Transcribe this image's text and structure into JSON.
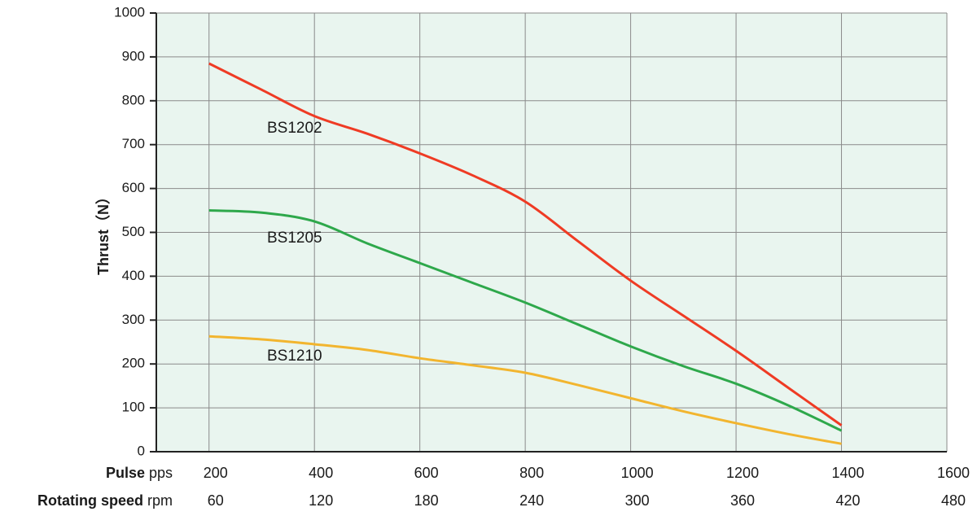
{
  "chart_data": {
    "type": "line",
    "ylabel": "Thrust",
    "ylabel_unit": "（N）",
    "ylim": [
      0,
      1000
    ],
    "yticks": [
      0,
      100,
      200,
      300,
      400,
      500,
      600,
      700,
      800,
      900,
      1000
    ],
    "xlim": [
      100,
      1600
    ],
    "x_rows": [
      {
        "label": "Pulse",
        "unit": "pps",
        "ticks": [
          "200",
          "400",
          "600",
          "800",
          "1000",
          "1200",
          "1400",
          "1600"
        ]
      },
      {
        "label": "Rotating speed",
        "unit": "rpm",
        "ticks": [
          "60",
          "120",
          "180",
          "240",
          "300",
          "360",
          "420",
          "480"
        ]
      }
    ],
    "grid": true,
    "background": "#e9f5ef",
    "series": [
      {
        "name": "BS1202",
        "color": "#ef3b24",
        "x": [
          200,
          300,
          400,
          500,
          600,
          700,
          800,
          900,
          1000,
          1100,
          1200,
          1300,
          1400
        ],
        "y": [
          885,
          825,
          765,
          725,
          680,
          630,
          570,
          480,
          390,
          310,
          230,
          145,
          60
        ]
      },
      {
        "name": "BS1205",
        "color": "#2ea84b",
        "x": [
          200,
          300,
          400,
          500,
          600,
          700,
          800,
          900,
          1000,
          1100,
          1200,
          1300,
          1400
        ],
        "y": [
          550,
          545,
          525,
          475,
          430,
          385,
          340,
          290,
          240,
          195,
          155,
          105,
          48
        ]
      },
      {
        "name": "BS1210",
        "color": "#f2b52f",
        "x": [
          200,
          300,
          400,
          500,
          600,
          700,
          800,
          900,
          1000,
          1100,
          1200,
          1300,
          1400
        ],
        "y": [
          263,
          256,
          245,
          232,
          213,
          197,
          180,
          152,
          122,
          92,
          65,
          40,
          18
        ]
      }
    ]
  }
}
